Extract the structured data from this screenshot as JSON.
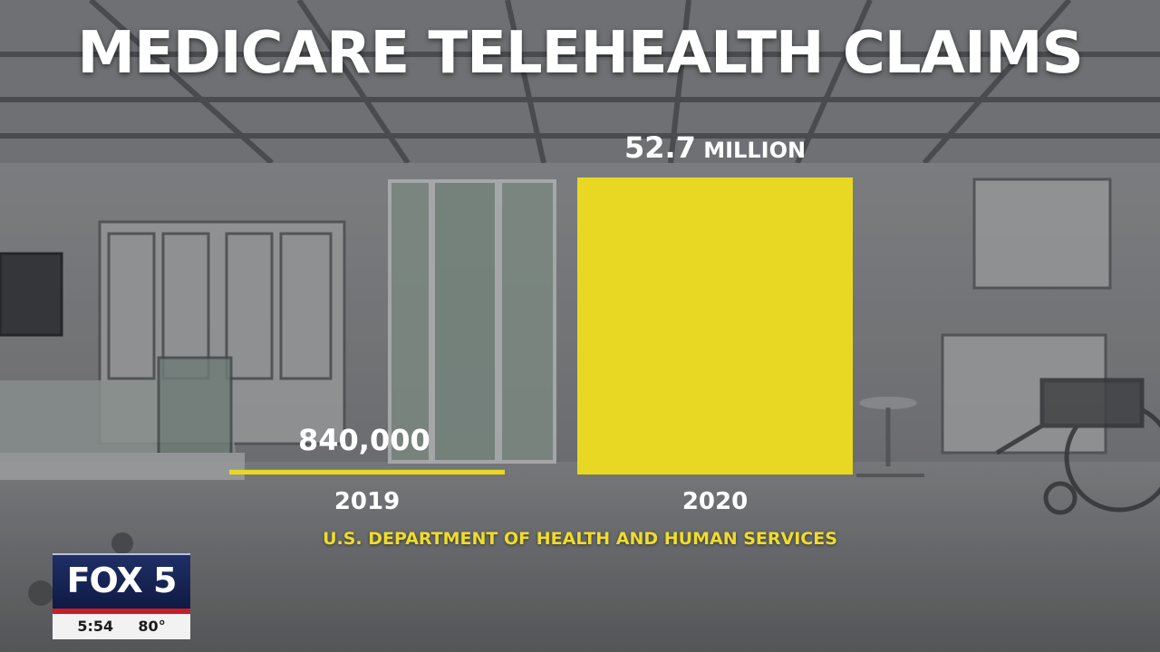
{
  "chart_data": {
    "type": "bar",
    "title": "MEDICARE TELEHEALTH CLAIMS",
    "categories": [
      "2019",
      "2020"
    ],
    "values": [
      840000,
      52700000
    ],
    "value_labels": [
      {
        "number": "840,000",
        "unit": ""
      },
      {
        "number": "52.7",
        "unit": "MILLION"
      }
    ],
    "xlabel": "",
    "ylabel": "",
    "ylim": [
      0,
      52700000
    ],
    "grid": false,
    "legend": "none",
    "source": "U.S. DEPARTMENT OF HEALTH AND HUMAN SERVICES",
    "bar_color": "#e8d823"
  },
  "station": {
    "logo": "FOX 5",
    "time": "5:54",
    "temperature": "80°"
  },
  "colors": {
    "accent": "#e8d823",
    "source_text": "#f0dc2a",
    "station_blue": "#1f2f66",
    "station_red": "#c81e2a"
  }
}
